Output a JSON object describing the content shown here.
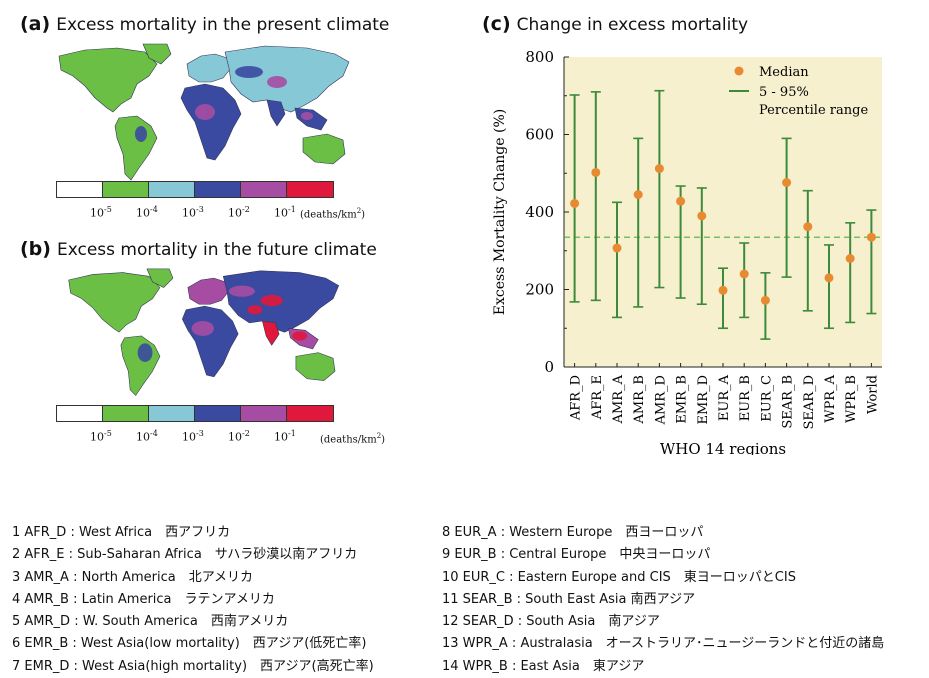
{
  "panel_a": {
    "tag": "(a)",
    "title": "Excess mortality in the present climate",
    "tick_labels": [
      "10",
      "10",
      "10",
      "10",
      "10"
    ],
    "tick_exponents": [
      "-5",
      "-4",
      "-3",
      "-2",
      "-1"
    ],
    "unit": "(deaths/km",
    "unit_exp": "2",
    "unit_close": ")"
  },
  "panel_b": {
    "tag": "(b)",
    "title": "Excess mortality in the future climate",
    "tick_labels": [
      "10",
      "10",
      "10",
      "10",
      "10"
    ],
    "tick_exponents": [
      "-5",
      "-4",
      "-3",
      "-2",
      "-1"
    ],
    "unit": "(deaths/km",
    "unit_exp": "2",
    "unit_close": ")"
  },
  "colors": {
    "scale": [
      "#ffffff",
      "#6bbf44",
      "#86c8d6",
      "#3a4aa0",
      "#a64da3",
      "#e0183c"
    ],
    "ocean": "#ffffff",
    "chart_bg": "#f6f0cf",
    "marker": "#e88a30",
    "errbar": "#3d8a3a",
    "refline": "#4cae48"
  },
  "panel_c": {
    "tag": "(c)",
    "title": "Change in excess mortality"
  },
  "chart_data": {
    "type": "scatter",
    "title": "Change in excess mortality",
    "xlabel": "WHO 14 regions",
    "ylabel": "Excess Mortality Change (%)",
    "ylim": [
      0,
      800
    ],
    "yticks": [
      "0",
      "200",
      "400",
      "600",
      "800"
    ],
    "categories": [
      "AFR_D",
      "AFR_E",
      "AMR_A",
      "AMR_B",
      "AMR_D",
      "EMR_B",
      "EMR_D",
      "EUR_A",
      "EUR_B",
      "EUR_C",
      "SEAR_B",
      "SEAR_D",
      "WPR_A",
      "WPR_B",
      "World"
    ],
    "series": [
      {
        "name": "Median",
        "values": [
          422,
          502,
          307,
          445,
          512,
          428,
          390,
          198,
          240,
          172,
          476,
          362,
          230,
          280,
          335
        ]
      },
      {
        "name": "5 - 95%",
        "low": [
          168,
          172,
          128,
          155,
          205,
          178,
          162,
          100,
          128,
          72,
          232,
          145,
          100,
          115,
          138
        ],
        "high": [
          702,
          710,
          425,
          590,
          713,
          467,
          462,
          255,
          320,
          243,
          590,
          455,
          315,
          372,
          405
        ]
      }
    ],
    "reference_line": 335,
    "legend": {
      "position": "top-right",
      "entries": [
        "Median",
        "5 - 95%",
        "Percentile range"
      ]
    }
  },
  "regions_left": [
    "1 AFR_D : West Africa　西アフリカ",
    "2 AFR_E : Sub-Saharan Africa　サハラ砂漠以南アフリカ",
    "3 AMR_A : North America　北アメリカ",
    "4 AMR_B : Latin America　ラテンアメリカ",
    "5 AMR_D : W. South America　西南アメリカ",
    "6 EMR_B : West Asia(low mortality)　西アジア(低死亡率)",
    "7 EMR_D : West Asia(high mortality)　西アジア(高死亡率)"
  ],
  "regions_right": [
    "8 EUR_A : Western Europe　西ヨーロッパ",
    "9 EUR_B : Central Europe　中央ヨーロッパ",
    "10 EUR_C : Eastern Europe and CIS　東ヨーロッパとCIS",
    "11 SEAR_B : South East Asia 南西アジア",
    "12 SEAR_D : South Asia　南アジア",
    "13 WPR_A : Australasia　オーストラリア･ニュージーランドと付近の諸島",
    "14 WPR_B : East Asia　東アジア"
  ]
}
